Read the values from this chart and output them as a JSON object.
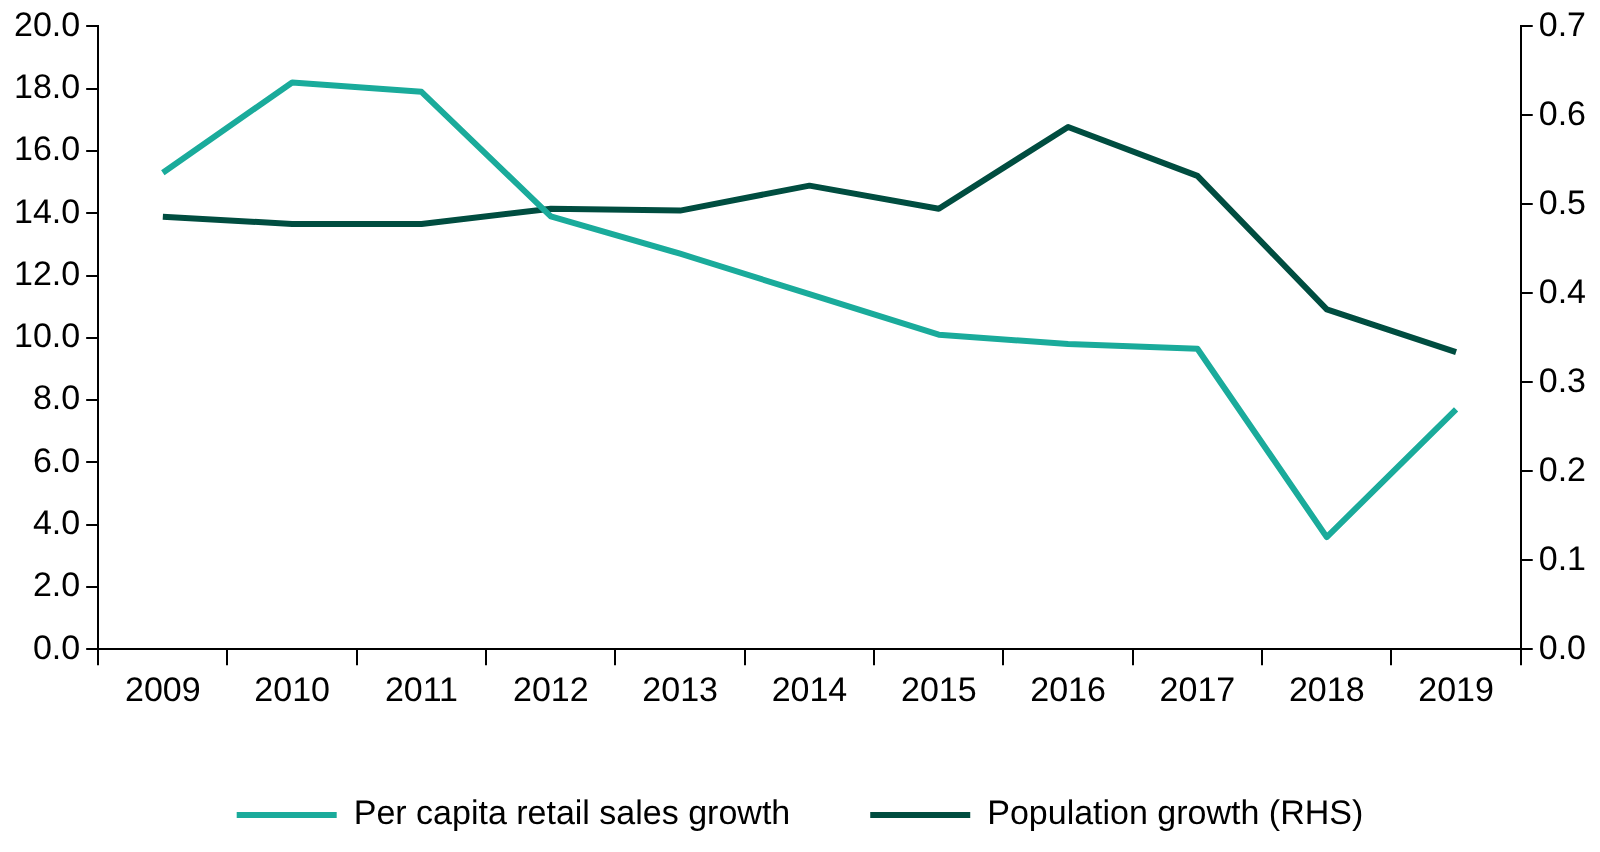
{
  "chart_data": {
    "type": "line",
    "categories": [
      "2009",
      "2010",
      "2011",
      "2012",
      "2013",
      "2014",
      "2015",
      "2016",
      "2017",
      "2018",
      "2019"
    ],
    "series": [
      {
        "name": "Per capita retail sales growth",
        "color": "#1aab9b",
        "values": [
          15.3,
          18.2,
          17.9,
          13.9,
          12.7,
          11.4,
          10.1,
          9.8,
          9.65,
          3.6,
          7.7
        ]
      },
      {
        "name": "Population growth (RHS)",
        "color": "#004d40",
        "axis": "y2",
        "values": [
          0.486,
          0.478,
          0.478,
          0.495,
          0.493,
          0.521,
          0.495,
          0.587,
          0.532,
          0.382,
          0.334
        ]
      }
    ],
    "ylim": [
      0,
      20
    ],
    "yticks": [
      {
        "value": 0,
        "label": "0.0"
      },
      {
        "value": 2,
        "label": "2.0"
      },
      {
        "value": 4,
        "label": "4.0"
      },
      {
        "value": 6,
        "label": "6.0"
      },
      {
        "value": 8,
        "label": "8.0"
      },
      {
        "value": 10,
        "label": "10.0"
      },
      {
        "value": 12,
        "label": "12.0"
      },
      {
        "value": 14,
        "label": "14.0"
      },
      {
        "value": 16,
        "label": "16.0"
      },
      {
        "value": 18,
        "label": "18.0"
      },
      {
        "value": 20,
        "label": "20.0"
      }
    ],
    "y2lim": [
      0,
      0.7
    ],
    "y2ticks": [
      {
        "value": 0,
        "label": "0.0"
      },
      {
        "value": 0.1,
        "label": "0.1"
      },
      {
        "value": 0.2,
        "label": "0.2"
      },
      {
        "value": 0.3,
        "label": "0.3"
      },
      {
        "value": 0.4,
        "label": "0.4"
      },
      {
        "value": 0.5,
        "label": "0.5"
      },
      {
        "value": 0.6,
        "label": "0.6"
      },
      {
        "value": 0.7,
        "label": "0.7"
      }
    ],
    "grid": false,
    "legend": "bottom",
    "marker": "none",
    "line_style": "solid"
  }
}
